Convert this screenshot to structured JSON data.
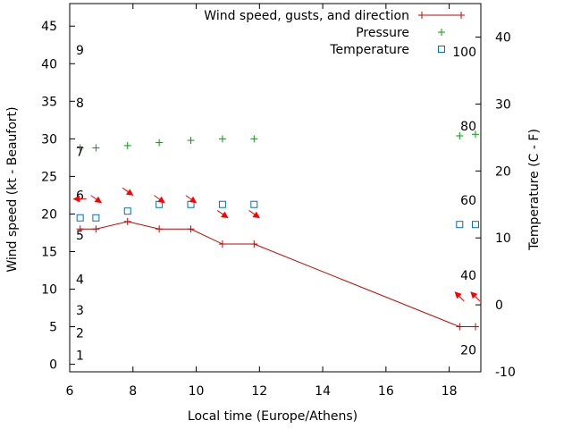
{
  "chart_data": {
    "type": "line",
    "xlabel": "Local time (Europe/Athens)",
    "ylabel": "Wind speed (kt - Beaufort)",
    "y2label": "Temperature (C - F)",
    "xlim": [
      6,
      19
    ],
    "ylim": [
      -1,
      48
    ],
    "y2lim": [
      -10,
      45
    ],
    "x_ticks": [
      6,
      8,
      10,
      12,
      14,
      16,
      18
    ],
    "y_ticks": [
      0,
      5,
      10,
      15,
      20,
      25,
      30,
      35,
      40,
      45
    ],
    "y2_ticks": [
      -10,
      0,
      10,
      20,
      30,
      40
    ],
    "beaufort_labels": [
      {
        "text": "1",
        "at": 1.2
      },
      {
        "text": "2",
        "at": 4.2
      },
      {
        "text": "3",
        "at": 7.2
      },
      {
        "text": "4",
        "at": 11.3
      },
      {
        "text": "5",
        "at": 17.2
      },
      {
        "text": "6",
        "at": 22.5
      },
      {
        "text": "7",
        "at": 28.3
      },
      {
        "text": "8",
        "at": 34.8
      },
      {
        "text": "9",
        "at": 41.8
      }
    ],
    "fahrenheit_labels": [
      {
        "text": "20",
        "at": -6.7
      },
      {
        "text": "40",
        "at": 4.4
      },
      {
        "text": "60",
        "at": 15.6
      },
      {
        "text": "80",
        "at": 26.7
      },
      {
        "text": "100",
        "at": 37.8
      }
    ],
    "legend_position": "top-right",
    "series": [
      {
        "name": "Wind speed, gusts, and direction",
        "color": "#cc0000",
        "marker": "plus-line",
        "x": [
          6.33,
          6.83,
          7.83,
          8.83,
          9.83,
          10.83,
          11.83,
          18.33,
          18.83
        ],
        "values": [
          18,
          18,
          19,
          18,
          18,
          16,
          16,
          5,
          5
        ]
      },
      {
        "name": "Pressure",
        "color": "#00a000",
        "marker": "plus",
        "x": [
          6.33,
          6.83,
          7.83,
          8.83,
          9.83,
          10.83,
          11.83,
          18.33,
          18.83
        ],
        "values": [
          28.8,
          28.8,
          29.1,
          29.5,
          29.8,
          30.0,
          30.0,
          30.4,
          30.6
        ]
      },
      {
        "name": "Temperature",
        "color": "#0070c0",
        "marker": "square",
        "x": [
          6.33,
          6.83,
          7.83,
          8.83,
          9.83,
          10.83,
          11.83,
          18.33,
          18.83
        ],
        "values": [
          13,
          13,
          14,
          15,
          15,
          15,
          15,
          12,
          12
        ]
      }
    ],
    "wind_direction_arrows": {
      "color": "#ff0000",
      "y": [
        22.0,
        22.0,
        23.0,
        22.0,
        22.0,
        20.0,
        20.0,
        9.0,
        9.0
      ],
      "angle_deg": [
        180,
        35,
        35,
        35,
        35,
        35,
        35,
        225,
        225
      ]
    }
  }
}
